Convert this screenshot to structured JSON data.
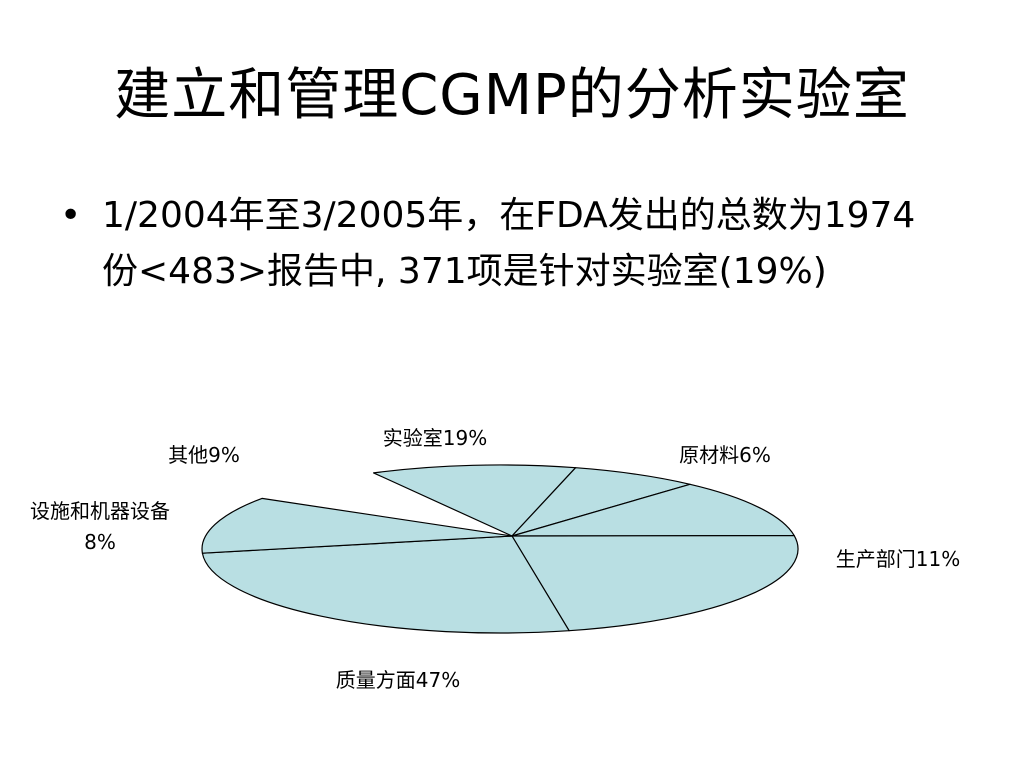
{
  "slide": {
    "title": "建立和管理CGMP的分析实验室",
    "bullets": [
      "1/2004年至3/2005年，在FDA发出的总数为1974份<483>报告中, 371项是针对实验室(19%)"
    ]
  },
  "chart_data": {
    "type": "pie",
    "style": "3d-flattened-ellipse",
    "fill_color": "#b9dfe3",
    "stroke_color": "#000000",
    "legend": "none",
    "slices": [
      {
        "label_lines": [
          "实验室19%"
        ],
        "value": 19
      },
      {
        "label_lines": [
          "原材料6%"
        ],
        "value": 6
      },
      {
        "label_lines": [
          "生产部门11%"
        ],
        "value": 11
      },
      {
        "label_lines": [
          "质量方面47%"
        ],
        "value": 47
      },
      {
        "label_lines": [
          "设施和机器设备",
          "8%"
        ],
        "value": 8
      },
      {
        "label_lines": [
          "其他9%"
        ],
        "value": 9
      }
    ]
  }
}
